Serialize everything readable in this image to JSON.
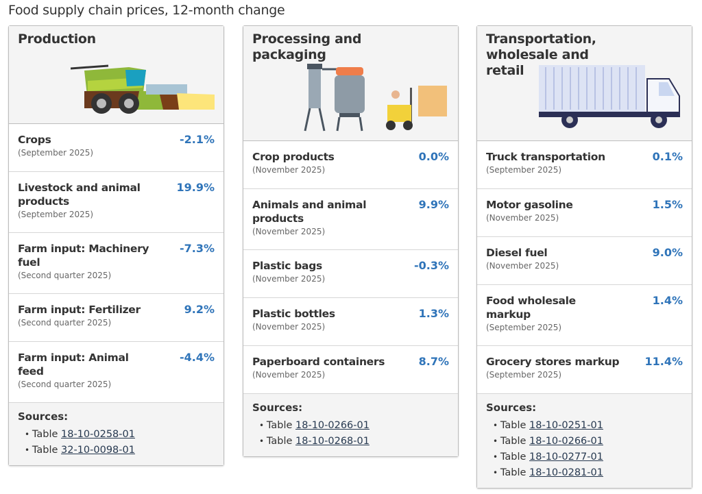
{
  "title": "Food supply chain prices, 12-month change",
  "sources_label": "Sources:",
  "table_prefix": "Table",
  "colors": {
    "value": "#2f74b9",
    "header_bg": "#f4f4f4"
  },
  "cards": [
    {
      "title": "Production",
      "icon": "combine-harvester-icon",
      "rows": [
        {
          "label": "Crops",
          "period": "(September 2025)",
          "value": "-2.1%"
        },
        {
          "label": "Livestock and animal products",
          "period": "(September 2025)",
          "value": "19.9%"
        },
        {
          "label": "Farm input: Machinery fuel",
          "period": "(Second quarter 2025)",
          "value": "-7.3%"
        },
        {
          "label": "Farm input: Fertilizer",
          "period": "(Second quarter 2025)",
          "value": "9.2%"
        },
        {
          "label": "Farm input: Animal feed",
          "period": "(Second quarter 2025)",
          "value": "-4.4%"
        }
      ],
      "sources": [
        "18-10-0258-01",
        "32-10-0098-01"
      ]
    },
    {
      "title": "Processing and packaging",
      "icon": "factory-forklift-icon",
      "rows": [
        {
          "label": "Crop products",
          "period": "(November 2025)",
          "value": "0.0%"
        },
        {
          "label": "Animals and animal products",
          "period": "(November 2025)",
          "value": "9.9%"
        },
        {
          "label": "Plastic bags",
          "period": "(November 2025)",
          "value": "-0.3%"
        },
        {
          "label": "Plastic bottles",
          "period": "(November 2025)",
          "value": "1.3%"
        },
        {
          "label": "Paperboard containers",
          "period": "(November 2025)",
          "value": "8.7%"
        }
      ],
      "sources": [
        "18-10-0266-01",
        "18-10-0268-01"
      ]
    },
    {
      "title": "Transportation, wholesale and retail",
      "icon": "truck-icon",
      "rows": [
        {
          "label": "Truck transportation",
          "period": "(September 2025)",
          "value": "0.1%"
        },
        {
          "label": "Motor gasoline",
          "period": "(November 2025)",
          "value": "1.5%"
        },
        {
          "label": "Diesel fuel",
          "period": "(November 2025)",
          "value": "9.0%"
        },
        {
          "label": "Food wholesale markup",
          "period": "(September 2025)",
          "value": "1.4%"
        },
        {
          "label": "Grocery stores markup",
          "period": "(September 2025)",
          "value": "11.4%"
        }
      ],
      "sources": [
        "18-10-0251-01",
        "18-10-0266-01",
        "18-10-0277-01",
        "18-10-0281-01"
      ]
    }
  ]
}
